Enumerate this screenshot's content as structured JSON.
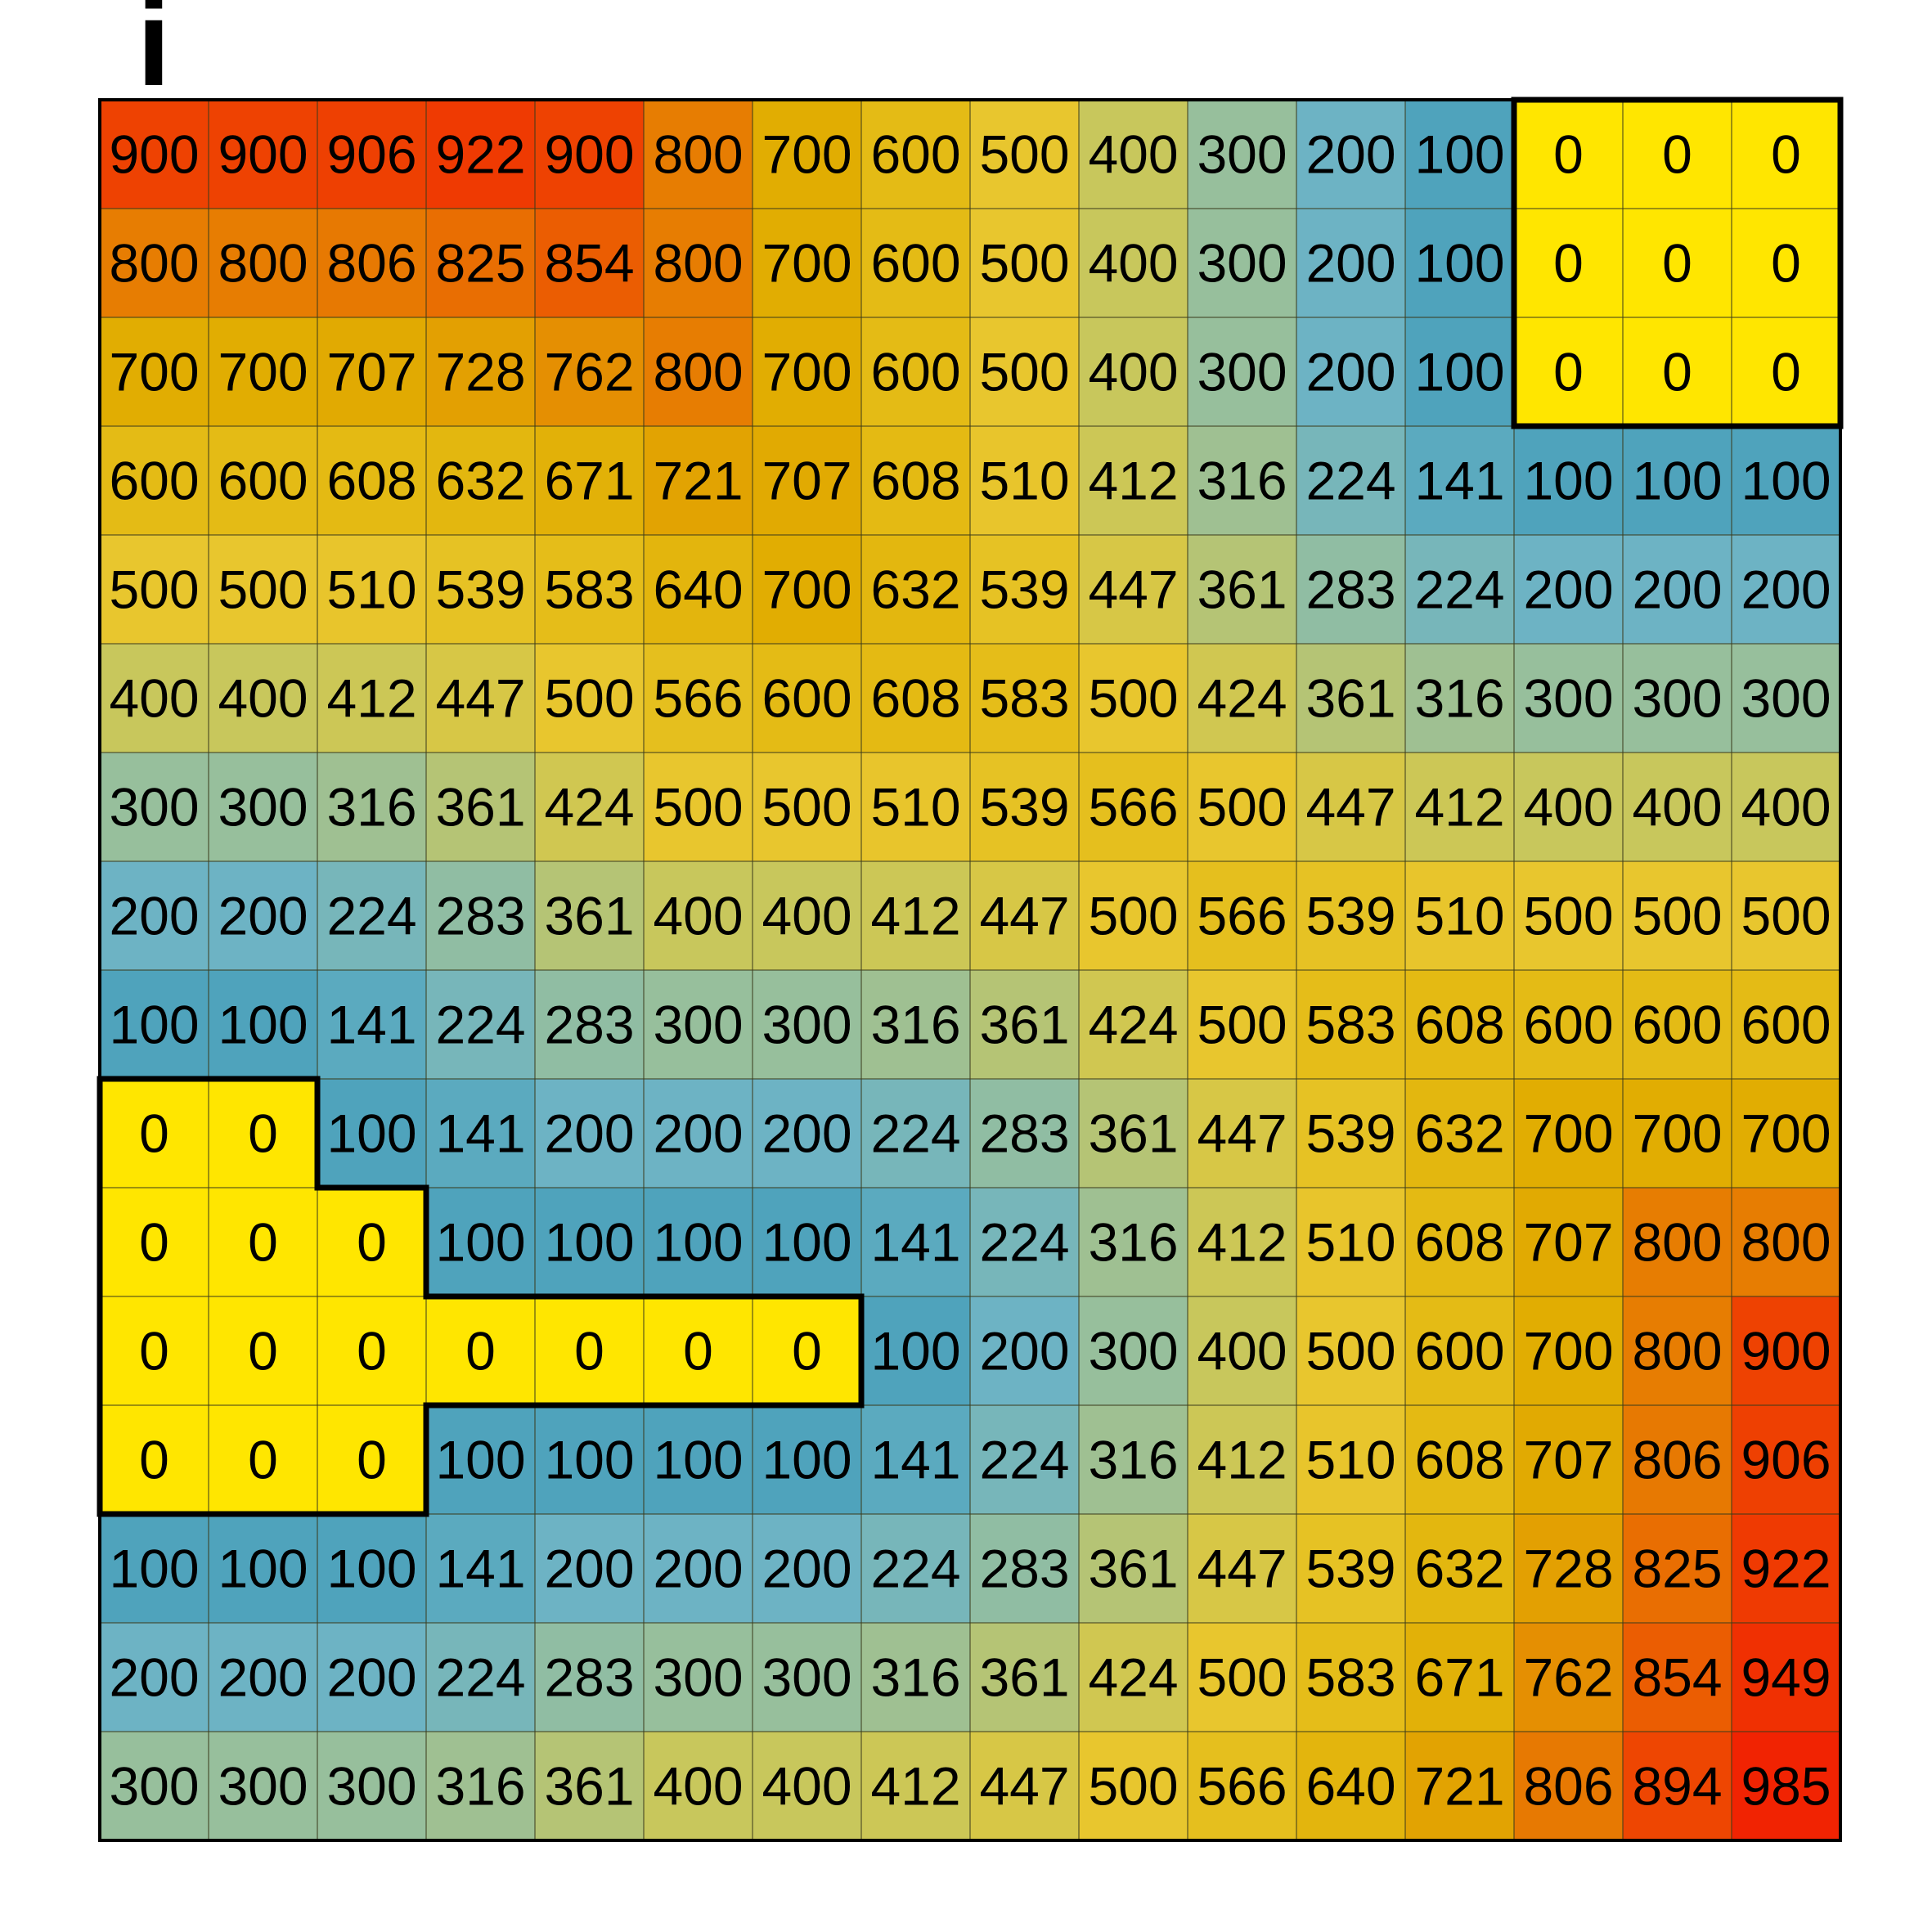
{
  "panel_label": "i",
  "chart_data": {
    "type": "heatmap",
    "title": "",
    "xlabel": "",
    "ylabel": "",
    "rows": 16,
    "cols": 16,
    "values": [
      [
        900,
        900,
        906,
        922,
        900,
        800,
        700,
        600,
        500,
        400,
        300,
        200,
        100,
        0,
        0,
        0
      ],
      [
        800,
        800,
        806,
        825,
        854,
        800,
        700,
        600,
        500,
        400,
        300,
        200,
        100,
        0,
        0,
        0
      ],
      [
        700,
        700,
        707,
        728,
        762,
        800,
        700,
        600,
        500,
        400,
        300,
        200,
        100,
        0,
        0,
        0
      ],
      [
        600,
        600,
        608,
        632,
        671,
        721,
        707,
        608,
        510,
        412,
        316,
        224,
        141,
        100,
        100,
        100
      ],
      [
        500,
        500,
        510,
        539,
        583,
        640,
        700,
        632,
        539,
        447,
        361,
        283,
        224,
        200,
        200,
        200
      ],
      [
        400,
        400,
        412,
        447,
        500,
        566,
        600,
        608,
        583,
        500,
        424,
        361,
        316,
        300,
        300,
        300
      ],
      [
        300,
        300,
        316,
        361,
        424,
        500,
        500,
        510,
        539,
        566,
        500,
        447,
        412,
        400,
        400,
        400
      ],
      [
        200,
        200,
        224,
        283,
        361,
        400,
        400,
        412,
        447,
        500,
        566,
        539,
        510,
        500,
        500,
        500
      ],
      [
        100,
        100,
        141,
        224,
        283,
        300,
        300,
        316,
        361,
        424,
        500,
        583,
        608,
        600,
        600,
        600
      ],
      [
        0,
        0,
        100,
        141,
        200,
        200,
        200,
        224,
        283,
        361,
        447,
        539,
        632,
        700,
        700,
        700
      ],
      [
        0,
        0,
        0,
        100,
        100,
        100,
        100,
        141,
        224,
        316,
        412,
        510,
        608,
        707,
        800,
        800
      ],
      [
        0,
        0,
        0,
        0,
        0,
        0,
        0,
        100,
        200,
        300,
        400,
        500,
        600,
        700,
        800,
        900
      ],
      [
        0,
        0,
        0,
        100,
        100,
        100,
        100,
        141,
        224,
        316,
        412,
        510,
        608,
        707,
        806,
        906
      ],
      [
        100,
        100,
        100,
        141,
        200,
        200,
        200,
        224,
        283,
        361,
        447,
        539,
        632,
        728,
        825,
        922
      ],
      [
        200,
        200,
        200,
        224,
        283,
        300,
        300,
        316,
        361,
        424,
        500,
        583,
        671,
        762,
        854,
        949
      ],
      [
        300,
        300,
        300,
        316,
        361,
        400,
        400,
        412,
        447,
        500,
        566,
        640,
        721,
        806,
        894,
        985
      ]
    ],
    "zero_color": "#ffe600",
    "color_scale": [
      {
        "v": 100,
        "color": "#4fa3bc"
      },
      {
        "v": 200,
        "color": "#6db3c4"
      },
      {
        "v": 300,
        "color": "#97bf9c"
      },
      {
        "v": 400,
        "color": "#c8c75c"
      },
      {
        "v": 500,
        "color": "#e8c62e"
      },
      {
        "v": 600,
        "color": "#e4bb15"
      },
      {
        "v": 700,
        "color": "#e1ad02"
      },
      {
        "v": 800,
        "color": "#e77d02"
      },
      {
        "v": 900,
        "color": "#ee4202"
      },
      {
        "v": 1000,
        "color": "#f21e02"
      }
    ],
    "zero_region_outline": true,
    "grid": true
  }
}
